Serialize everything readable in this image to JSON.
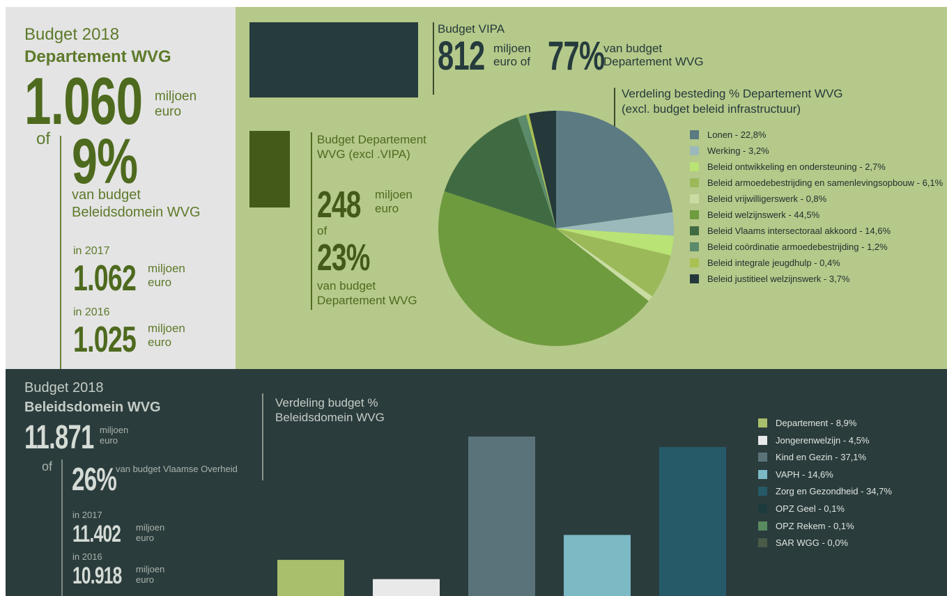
{
  "left": {
    "line1": "Budget 2018",
    "line2": "Departement WVG",
    "big": "1.060",
    "unit": "miljoen euro",
    "of": "of",
    "pct": "9%",
    "pct_text": "van budget Beleidsdomein WVG",
    "y2017": "in 2017",
    "v2017": "1.062",
    "u2017": "miljoen euro",
    "y2016": "in 2016",
    "v2016": "1.025",
    "u2016": "miljoen euro"
  },
  "vipa": {
    "title": "Budget VIPA",
    "big": "812",
    "unit": "miljoen euro of",
    "pct": "77%",
    "pct_text": "van budget Departement WVG"
  },
  "dept": {
    "title": "Budget Departement WVG (excl .VIPA)",
    "big": "248",
    "unit": "miljoen euro",
    "of": "of",
    "pct": "23%",
    "pct_text": "van budget Departement WVG"
  },
  "bottom": {
    "line1": "Budget 2018",
    "line2": "Beleidsdomein WVG",
    "big": "11.871",
    "unit": "miljoen euro",
    "of": "of",
    "pct": "26%",
    "pct_text": "van budget Vlaamse Overheid",
    "y2017": "in 2017",
    "v2017": "11.402",
    "u2017": "miljoen euro",
    "y2016": "in 2016",
    "v2016": "10.918",
    "u2016": "miljoen euro"
  },
  "chart_data": [
    {
      "type": "pie",
      "title": "Verdeling besteding % Departement WVG (excl. budget beleid infrastructuur)",
      "categories": [
        "Lonen - 22,8%",
        "Werking - 3,2%",
        "Beleid ontwikkeling en ondersteuning - 2,7%",
        "Beleid armoedebestrijding en samenlevingsopbouw - 6,1%",
        "Beleid vrijwilligerswerk - 0,8%",
        "Beleid welzijnswerk - 44,5%",
        "Beleid Vlaams intersectoraal akkoord - 14,6%",
        "Beleid coördinatie armoedebestrijding - 1,2%",
        "Beleid integrale jeugdhulp - 0,4%",
        "Beleid justitieel welzijnswerk - 3,7%"
      ],
      "values": [
        22.8,
        3.2,
        2.7,
        6.1,
        0.8,
        44.5,
        14.6,
        1.2,
        0.4,
        3.7
      ],
      "colors": [
        "#5b7a82",
        "#9bb9ba",
        "#b9e375",
        "#9cb95a",
        "#c9dca3",
        "#6f9b3f",
        "#406b42",
        "#5b8b6a",
        "#a9c152",
        "#25393b"
      ]
    },
    {
      "type": "bar",
      "title": "Verdeling budget % Beleidsdomein WVG",
      "categories": [
        "Departement - 8,9%",
        "Jongerenwelzijn - 4,5%",
        "Kind en Gezin - 37,1%",
        "VAPH - 14,6%",
        "Zorg en Gezondheid - 34,7%",
        "OPZ Geel - 0,1%",
        "OPZ Rekem - 0,1%",
        "SAR WGG - 0,0%"
      ],
      "values": [
        8.9,
        4.5,
        37.1,
        14.6,
        34.7,
        0.1,
        0.1,
        0.0
      ],
      "colors": [
        "#a9bf6b",
        "#e9e9e9",
        "#5a737a",
        "#7bb9c5",
        "#265a68",
        "#1d3a3c",
        "#5a8a60",
        "#4a5a48"
      ]
    }
  ]
}
